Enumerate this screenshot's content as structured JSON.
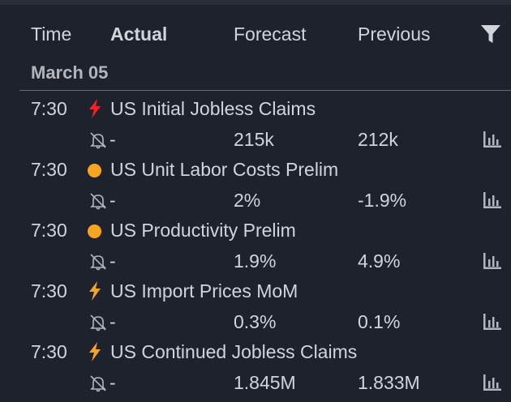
{
  "columns": {
    "time": "Time",
    "actual": "Actual",
    "forecast": "Forecast",
    "previous": "Previous"
  },
  "date_group": "March 05",
  "colors": {
    "high": "#ff1f1f",
    "medium": "#f7a520",
    "icon": "#b2b5be"
  },
  "events": [
    {
      "time": "7:30",
      "importance": "high",
      "importance_icon": "bolt-icon-red",
      "title": "US Initial Jobless Claims",
      "actual": "-",
      "forecast": "215k",
      "previous": "212k"
    },
    {
      "time": "7:30",
      "importance": "medium",
      "importance_icon": "dot-icon-orange",
      "title": "US Unit Labor Costs Prelim",
      "actual": "-",
      "forecast": "2%",
      "previous": "-1.9%"
    },
    {
      "time": "7:30",
      "importance": "medium",
      "importance_icon": "dot-icon-orange",
      "title": "US Productivity Prelim",
      "actual": "-",
      "forecast": "1.9%",
      "previous": "4.9%"
    },
    {
      "time": "7:30",
      "importance": "medium-high",
      "importance_icon": "bolt-icon-orange",
      "title": "US Import Prices MoM",
      "actual": "-",
      "forecast": "0.3%",
      "previous": "0.1%"
    },
    {
      "time": "7:30",
      "importance": "medium-high",
      "importance_icon": "bolt-icon-orange",
      "title": "US Continued Jobless Claims",
      "actual": "-",
      "forecast": "1.845M",
      "previous": "1.833M"
    }
  ]
}
